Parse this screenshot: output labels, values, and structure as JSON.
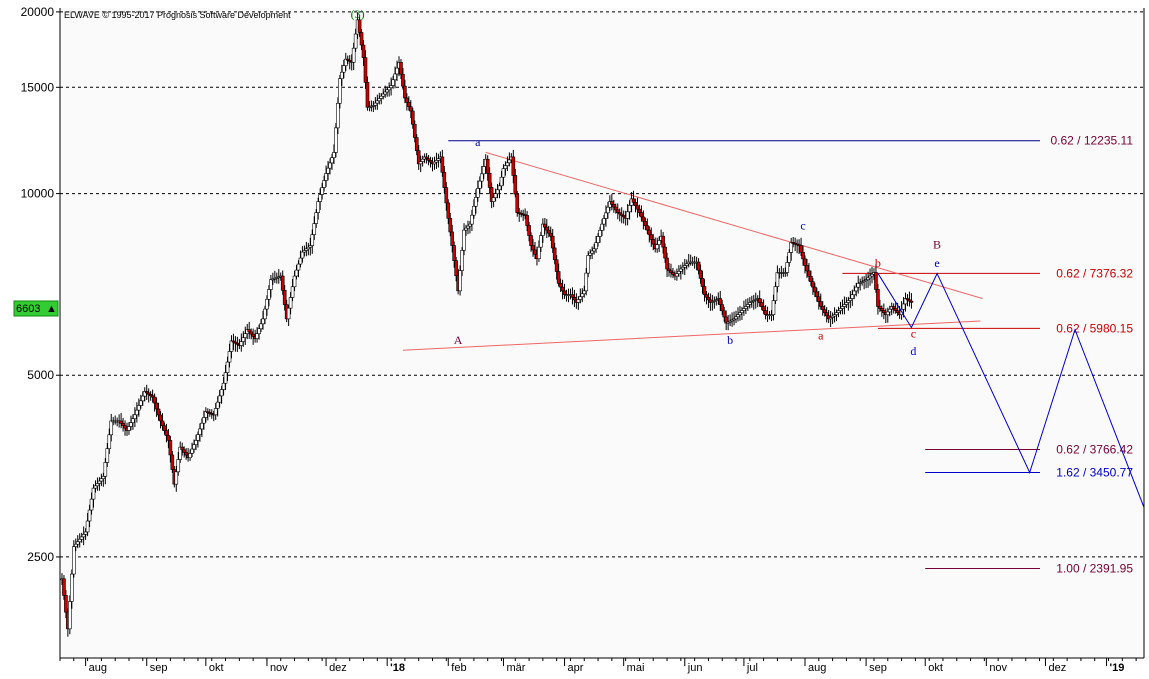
{
  "chart_data": {
    "type": "candlestick",
    "copyright": "ELWAVE © 1995-2017 Prognosis Software Development",
    "y_axis": {
      "scale": "log",
      "ticks": [
        20000,
        15000,
        10000,
        5000,
        2500
      ],
      "tick_labels": [
        "20000",
        "15000",
        "10000",
        "5000",
        "2500"
      ],
      "ylim": [
        1700,
        20300
      ]
    },
    "x_axis": {
      "range": [
        "2017-07-19",
        "2019-01-20"
      ],
      "ticks": [
        {
          "date": "2017-08-01",
          "label": "aug"
        },
        {
          "date": "2017-09-01",
          "label": "sep"
        },
        {
          "date": "2017-10-01",
          "label": "okt"
        },
        {
          "date": "2017-11-01",
          "label": "nov"
        },
        {
          "date": "2017-12-01",
          "label": "dez"
        },
        {
          "date": "2018-01-01",
          "label": "'18"
        },
        {
          "date": "2018-02-01",
          "label": "feb"
        },
        {
          "date": "2018-03-01",
          "label": "mär"
        },
        {
          "date": "2018-04-01",
          "label": "apr"
        },
        {
          "date": "2018-05-01",
          "label": "mai"
        },
        {
          "date": "2018-06-01",
          "label": "jun"
        },
        {
          "date": "2018-07-01",
          "label": "jul"
        },
        {
          "date": "2018-08-01",
          "label": "aug"
        },
        {
          "date": "2018-09-01",
          "label": "sep"
        },
        {
          "date": "2018-10-01",
          "label": "okt"
        },
        {
          "date": "2018-11-01",
          "label": "nov"
        },
        {
          "date": "2018-12-01",
          "label": "dez"
        },
        {
          "date": "2019-01-01",
          "label": "'19"
        }
      ]
    },
    "price_path": [
      [
        "2017-07-20",
        2300
      ],
      [
        "2017-07-23",
        1900
      ],
      [
        "2017-07-26",
        2600
      ],
      [
        "2017-08-01",
        2750
      ],
      [
        "2017-08-05",
        3250
      ],
      [
        "2017-08-10",
        3400
      ],
      [
        "2017-08-14",
        4200
      ],
      [
        "2017-08-18",
        4200
      ],
      [
        "2017-08-22",
        4050
      ],
      [
        "2017-08-26",
        4300
      ],
      [
        "2017-08-31",
        4700
      ],
      [
        "2017-09-04",
        4600
      ],
      [
        "2017-09-08",
        4200
      ],
      [
        "2017-09-12",
        3900
      ],
      [
        "2017-09-15",
        3300
      ],
      [
        "2017-09-18",
        3800
      ],
      [
        "2017-09-22",
        3650
      ],
      [
        "2017-09-26",
        3900
      ],
      [
        "2017-10-01",
        4350
      ],
      [
        "2017-10-05",
        4300
      ],
      [
        "2017-10-10",
        4850
      ],
      [
        "2017-10-14",
        5700
      ],
      [
        "2017-10-18",
        5600
      ],
      [
        "2017-10-22",
        5950
      ],
      [
        "2017-10-26",
        5750
      ],
      [
        "2017-10-30",
        6200
      ],
      [
        "2017-11-03",
        7200
      ],
      [
        "2017-11-08",
        7300
      ],
      [
        "2017-11-11",
        6200
      ],
      [
        "2017-11-15",
        7300
      ],
      [
        "2017-11-19",
        8000
      ],
      [
        "2017-11-23",
        8200
      ],
      [
        "2017-11-27",
        9700
      ],
      [
        "2017-12-01",
        10800
      ],
      [
        "2017-12-05",
        11700
      ],
      [
        "2017-12-08",
        15500
      ],
      [
        "2017-12-11",
        16700
      ],
      [
        "2017-12-14",
        16500
      ],
      [
        "2017-12-17",
        19400
      ],
      [
        "2017-12-20",
        16800
      ],
      [
        "2017-12-22",
        13900
      ],
      [
        "2017-12-25",
        14000
      ],
      [
        "2017-12-29",
        14500
      ],
      [
        "2018-01-03",
        15100
      ],
      [
        "2018-01-07",
        16500
      ],
      [
        "2018-01-10",
        14400
      ],
      [
        "2018-01-13",
        13700
      ],
      [
        "2018-01-17",
        11200
      ],
      [
        "2018-01-20",
        11500
      ],
      [
        "2018-01-24",
        11200
      ],
      [
        "2018-01-28",
        11500
      ],
      [
        "2018-02-01",
        9100
      ],
      [
        "2018-02-03",
        8200
      ],
      [
        "2018-02-06",
        6900
      ],
      [
        "2018-02-09",
        8700
      ],
      [
        "2018-02-12",
        8900
      ],
      [
        "2018-02-16",
        10200
      ],
      [
        "2018-02-20",
        11400
      ],
      [
        "2018-02-23",
        9700
      ],
      [
        "2018-02-27",
        10300
      ],
      [
        "2018-03-01",
        11000
      ],
      [
        "2018-03-05",
        11500
      ],
      [
        "2018-03-08",
        9300
      ],
      [
        "2018-03-12",
        9200
      ],
      [
        "2018-03-15",
        8200
      ],
      [
        "2018-03-18",
        7800
      ],
      [
        "2018-03-21",
        8900
      ],
      [
        "2018-03-25",
        8500
      ],
      [
        "2018-03-29",
        7100
      ],
      [
        "2018-04-01",
        6800
      ],
      [
        "2018-04-04",
        6800
      ],
      [
        "2018-04-07",
        6600
      ],
      [
        "2018-04-11",
        6900
      ],
      [
        "2018-04-13",
        7900
      ],
      [
        "2018-04-16",
        8100
      ],
      [
        "2018-04-20",
        8900
      ],
      [
        "2018-04-24",
        9700
      ],
      [
        "2018-04-28",
        9300
      ],
      [
        "2018-05-02",
        9100
      ],
      [
        "2018-05-05",
        9800
      ],
      [
        "2018-05-09",
        9300
      ],
      [
        "2018-05-13",
        8700
      ],
      [
        "2018-05-17",
        8100
      ],
      [
        "2018-05-20",
        8500
      ],
      [
        "2018-05-23",
        7500
      ],
      [
        "2018-05-27",
        7300
      ],
      [
        "2018-05-30",
        7500
      ],
      [
        "2018-06-03",
        7700
      ],
      [
        "2018-06-07",
        7700
      ],
      [
        "2018-06-11",
        6800
      ],
      [
        "2018-06-14",
        6600
      ],
      [
        "2018-06-18",
        6700
      ],
      [
        "2018-06-22",
        6100
      ],
      [
        "2018-06-26",
        6200
      ],
      [
        "2018-06-30",
        6400
      ],
      [
        "2018-07-04",
        6600
      ],
      [
        "2018-07-08",
        6700
      ],
      [
        "2018-07-12",
        6300
      ],
      [
        "2018-07-15",
        6300
      ],
      [
        "2018-07-18",
        7400
      ],
      [
        "2018-07-22",
        7400
      ],
      [
        "2018-07-25",
        8300
      ],
      [
        "2018-07-29",
        8200
      ],
      [
        "2018-08-01",
        7600
      ],
      [
        "2018-08-05",
        7000
      ],
      [
        "2018-08-09",
        6500
      ],
      [
        "2018-08-13",
        6200
      ],
      [
        "2018-08-16",
        6300
      ],
      [
        "2018-08-20",
        6500
      ],
      [
        "2018-08-24",
        6700
      ],
      [
        "2018-08-28",
        7100
      ],
      [
        "2018-09-01",
        7200
      ],
      [
        "2018-09-05",
        7400
      ],
      [
        "2018-09-07",
        6500
      ],
      [
        "2018-09-11",
        6300
      ],
      [
        "2018-09-14",
        6500
      ],
      [
        "2018-09-18",
        6300
      ],
      [
        "2018-09-21",
        6700
      ],
      [
        "2018-09-24",
        6603
      ]
    ],
    "lines": [
      {
        "name": "upper-trendline",
        "color": "#ee6666",
        "points": [
          [
            "2018-02-20",
            11700
          ],
          [
            "2018-10-30",
            6700
          ]
        ]
      },
      {
        "name": "lower-trendline",
        "color": "#ee6666",
        "points": [
          [
            "2018-01-09",
            5500
          ],
          [
            "2018-10-29",
            6150
          ]
        ]
      },
      {
        "name": "projection",
        "color": "#0000cc",
        "points": [
          [
            "2018-09-07",
            7376
          ],
          [
            "2018-09-24",
            6000
          ],
          [
            "2018-10-07",
            7370
          ],
          [
            "2018-11-23",
            3450
          ],
          [
            "2018-12-16",
            5950
          ],
          [
            "2019-01-20",
            3020
          ]
        ]
      }
    ],
    "fib_levels": [
      {
        "value": 12235.11,
        "label": "0.62 / 12235.11",
        "color": "#000088",
        "text_color": "#770033",
        "start": "2018-02-01"
      },
      {
        "value": 7376.32,
        "label": "0.62 / 7376.32",
        "color": "#cc0000",
        "text_color": "#cc0000",
        "start": "2018-08-20"
      },
      {
        "value": 5980.15,
        "label": "0.62 / 5980.15",
        "color": "#cc0000",
        "text_color": "#cc0000",
        "start": "2018-09-07"
      },
      {
        "value": 3766.42,
        "label": "0.62 / 3766.42",
        "color": "#770033",
        "text_color": "#770033",
        "start": "2018-10-01"
      },
      {
        "value": 3450.77,
        "label": "1.62 / 3450.77",
        "color": "#0000cc",
        "text_color": "#0000cc",
        "start": "2018-10-01"
      },
      {
        "value": 2391.95,
        "label": "1.00 / 2391.95",
        "color": "#770033",
        "text_color": "#770033",
        "start": "2018-10-01"
      }
    ],
    "wave_labels": [
      {
        "text": "(3)",
        "date": "2017-12-17",
        "price": 19400,
        "pos": "above",
        "color": "#007700"
      },
      {
        "text": "A",
        "date": "2018-02-06",
        "price": 5900,
        "pos": "below",
        "color": "#770033"
      },
      {
        "text": "a",
        "date": "2018-02-16",
        "price": 11900,
        "pos": "above",
        "color": "#0000aa"
      },
      {
        "text": "b",
        "date": "2018-06-24",
        "price": 5900,
        "pos": "below",
        "color": "#0000aa"
      },
      {
        "text": "c",
        "date": "2018-07-31",
        "price": 8650,
        "pos": "above",
        "color": "#0000aa"
      },
      {
        "text": "a",
        "date": "2018-08-09",
        "price": 6000,
        "pos": "below",
        "color": "#cc0000"
      },
      {
        "text": "b",
        "date": "2018-09-07",
        "price": 7500,
        "pos": "above",
        "color": "#cc0000"
      },
      {
        "text": "c",
        "date": "2018-09-25",
        "price": 6050,
        "pos": "below",
        "color": "#cc0000"
      },
      {
        "text": "d",
        "date": "2018-09-25",
        "price": 5650,
        "pos": "below",
        "color": "#0000cc"
      },
      {
        "text": "B",
        "date": "2018-10-07",
        "price": 8050,
        "pos": "above",
        "color": "#770033"
      },
      {
        "text": "e",
        "date": "2018-10-07",
        "price": 7500,
        "pos": "above",
        "color": "#0000cc"
      }
    ],
    "last_price": {
      "value": 6603,
      "text": "6603",
      "marker": "▲",
      "color": "#33cc33"
    }
  }
}
